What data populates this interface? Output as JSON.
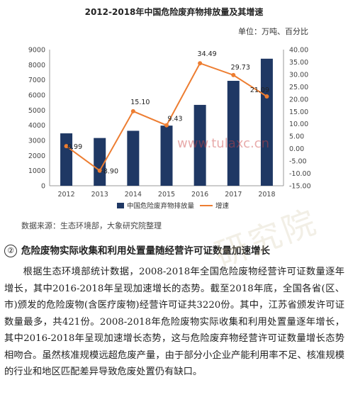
{
  "chart_data": {
    "type": "bar+line",
    "title": "2012-2018年中国危险废弃物排放量及其增速",
    "unit_note": "单位：万吨、百分比",
    "categories": [
      "2012",
      "2013",
      "2014",
      "2015",
      "2016",
      "2017",
      "2018"
    ],
    "series": [
      {
        "name": "中国危险废弃物排放量",
        "type": "bar",
        "axis": "left",
        "color": "#1f3864",
        "values": [
          3465,
          3157,
          3634,
          3976,
          5347,
          6937,
          8400
        ]
      },
      {
        "name": "增速",
        "type": "line",
        "axis": "right",
        "color": "#ed7d31",
        "values": [
          0.99,
          -8.9,
          15.1,
          9.43,
          34.49,
          29.73,
          21.09
        ],
        "labels": [
          "0.99",
          "-8.90",
          "15.10",
          "9.43",
          "34.49",
          "29.73",
          "21.09"
        ]
      }
    ],
    "left_axis": {
      "ylim": [
        0,
        9000
      ],
      "ticks": [
        "0",
        "1000",
        "2000",
        "3000",
        "4000",
        "5000",
        "6000",
        "7000",
        "8000",
        "9000"
      ]
    },
    "right_axis": {
      "ylim": [
        -15,
        40
      ],
      "ticks": [
        "-15.00",
        "-10.00",
        "-5.00",
        "0.00",
        "5.00",
        "10.00",
        "15.00",
        "20.00",
        "25.00",
        "30.00",
        "35.00",
        "40.00"
      ]
    },
    "grid": false,
    "legend_position": "bottom"
  },
  "source_note": "数据来源：生态环境部，大象研究院整理",
  "section": {
    "number": "②",
    "heading": "危险废物实际收集和利用处置量随经营许可证数量加速增长",
    "body": "根据生态环境部统计数据，2008-2018年全国危险废物经营许可证数量逐年增长，其中2016-2018年呈现加速增长的态势。截至2018年底，全国各省(区、市)颁发的危险废物(含医疗废物)经营许可证共3220份。其中，江苏省颁发许可证数量最多，共421份。2008-2018年危险废物实际收集和利用处置量逐年增长，其中2016-2018年呈现加速增长态势，这与危险废弃物经营许可证数量增长态势相吻合。虽然核准规模远超危废产量，由于部分小企业产能利用率不足、核准规模的行业和地区匹配差异导致危废处置仍有缺口。"
  },
  "watermark": "研究院",
  "watermark_url": "www.tulaxc.cn"
}
